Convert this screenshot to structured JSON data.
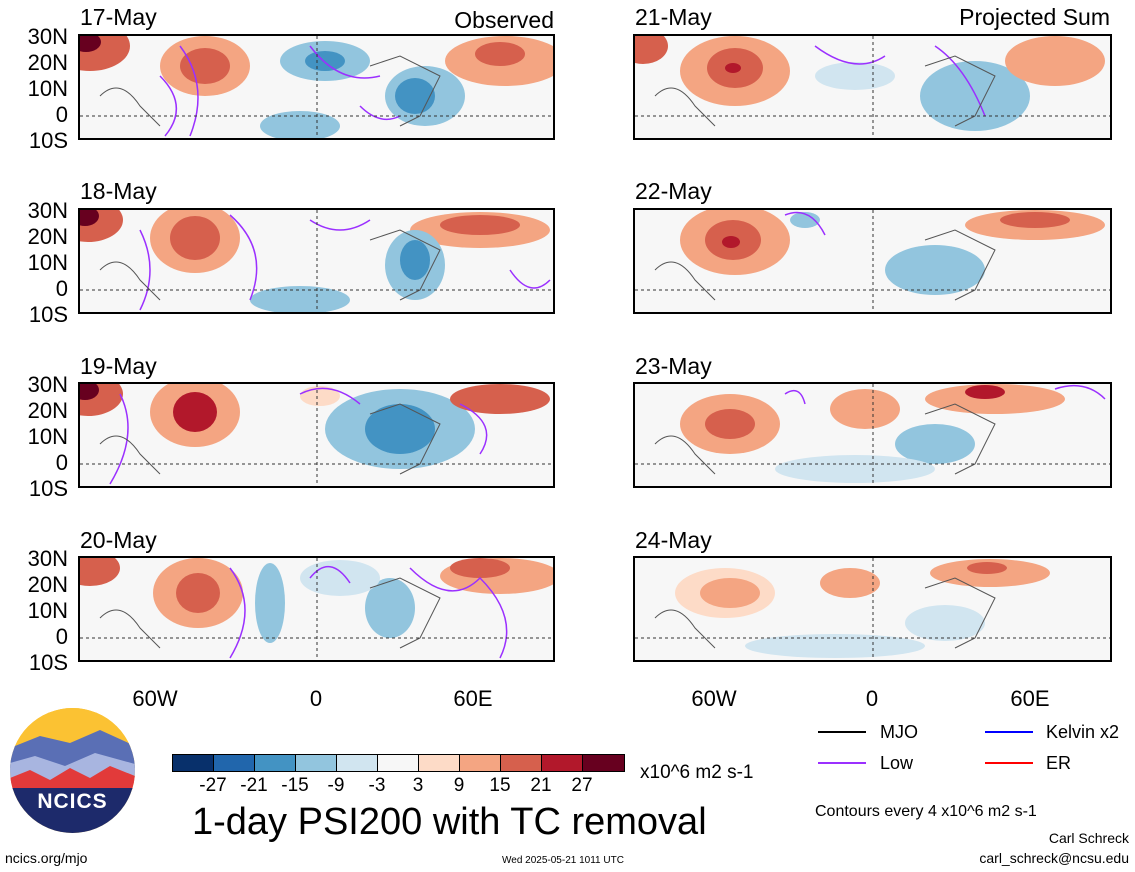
{
  "headers": {
    "observed": "Observed",
    "projected": "Projected Sum"
  },
  "left_panels": [
    "17-May",
    "18-May",
    "19-May",
    "20-May"
  ],
  "right_panels": [
    "21-May",
    "22-May",
    "23-May",
    "24-May"
  ],
  "lat_labels": [
    "30N",
    "20N",
    "10N",
    "0",
    "10S"
  ],
  "lon_labels": [
    "60W",
    "0",
    "60E"
  ],
  "colorbar": {
    "colors": [
      "#08306b",
      "#2166ac",
      "#4393c3",
      "#92c5de",
      "#d1e5f0",
      "#f7f7f7",
      "#fddbc7",
      "#f4a582",
      "#d6604d",
      "#b2182b",
      "#67001f"
    ],
    "labels": [
      "-27",
      "-21",
      "-15",
      "-9",
      "-3",
      "3",
      "9",
      "15",
      "21",
      "27"
    ],
    "units": "x10^6 m2 s-1"
  },
  "title": "1-day PSI200 with TC removal",
  "legend": {
    "items": [
      {
        "label": "MJO",
        "color": "#000000"
      },
      {
        "label": "Kelvin x2",
        "color": "#0000ff"
      },
      {
        "label": "Low",
        "color": "#9b30ff"
      },
      {
        "label": "ER",
        "color": "#ff0000"
      }
    ],
    "contours_note": "Contours every 4 x10^6 m2 s-1"
  },
  "credits": {
    "author": "Carl Schreck",
    "email": "carl_schreck@ncsu.edu"
  },
  "footer": {
    "url": "ncics.org/mjo",
    "timestamp": "Wed 2025-05-21 1011 UTC"
  },
  "logo": {
    "text": "NCICS"
  }
}
